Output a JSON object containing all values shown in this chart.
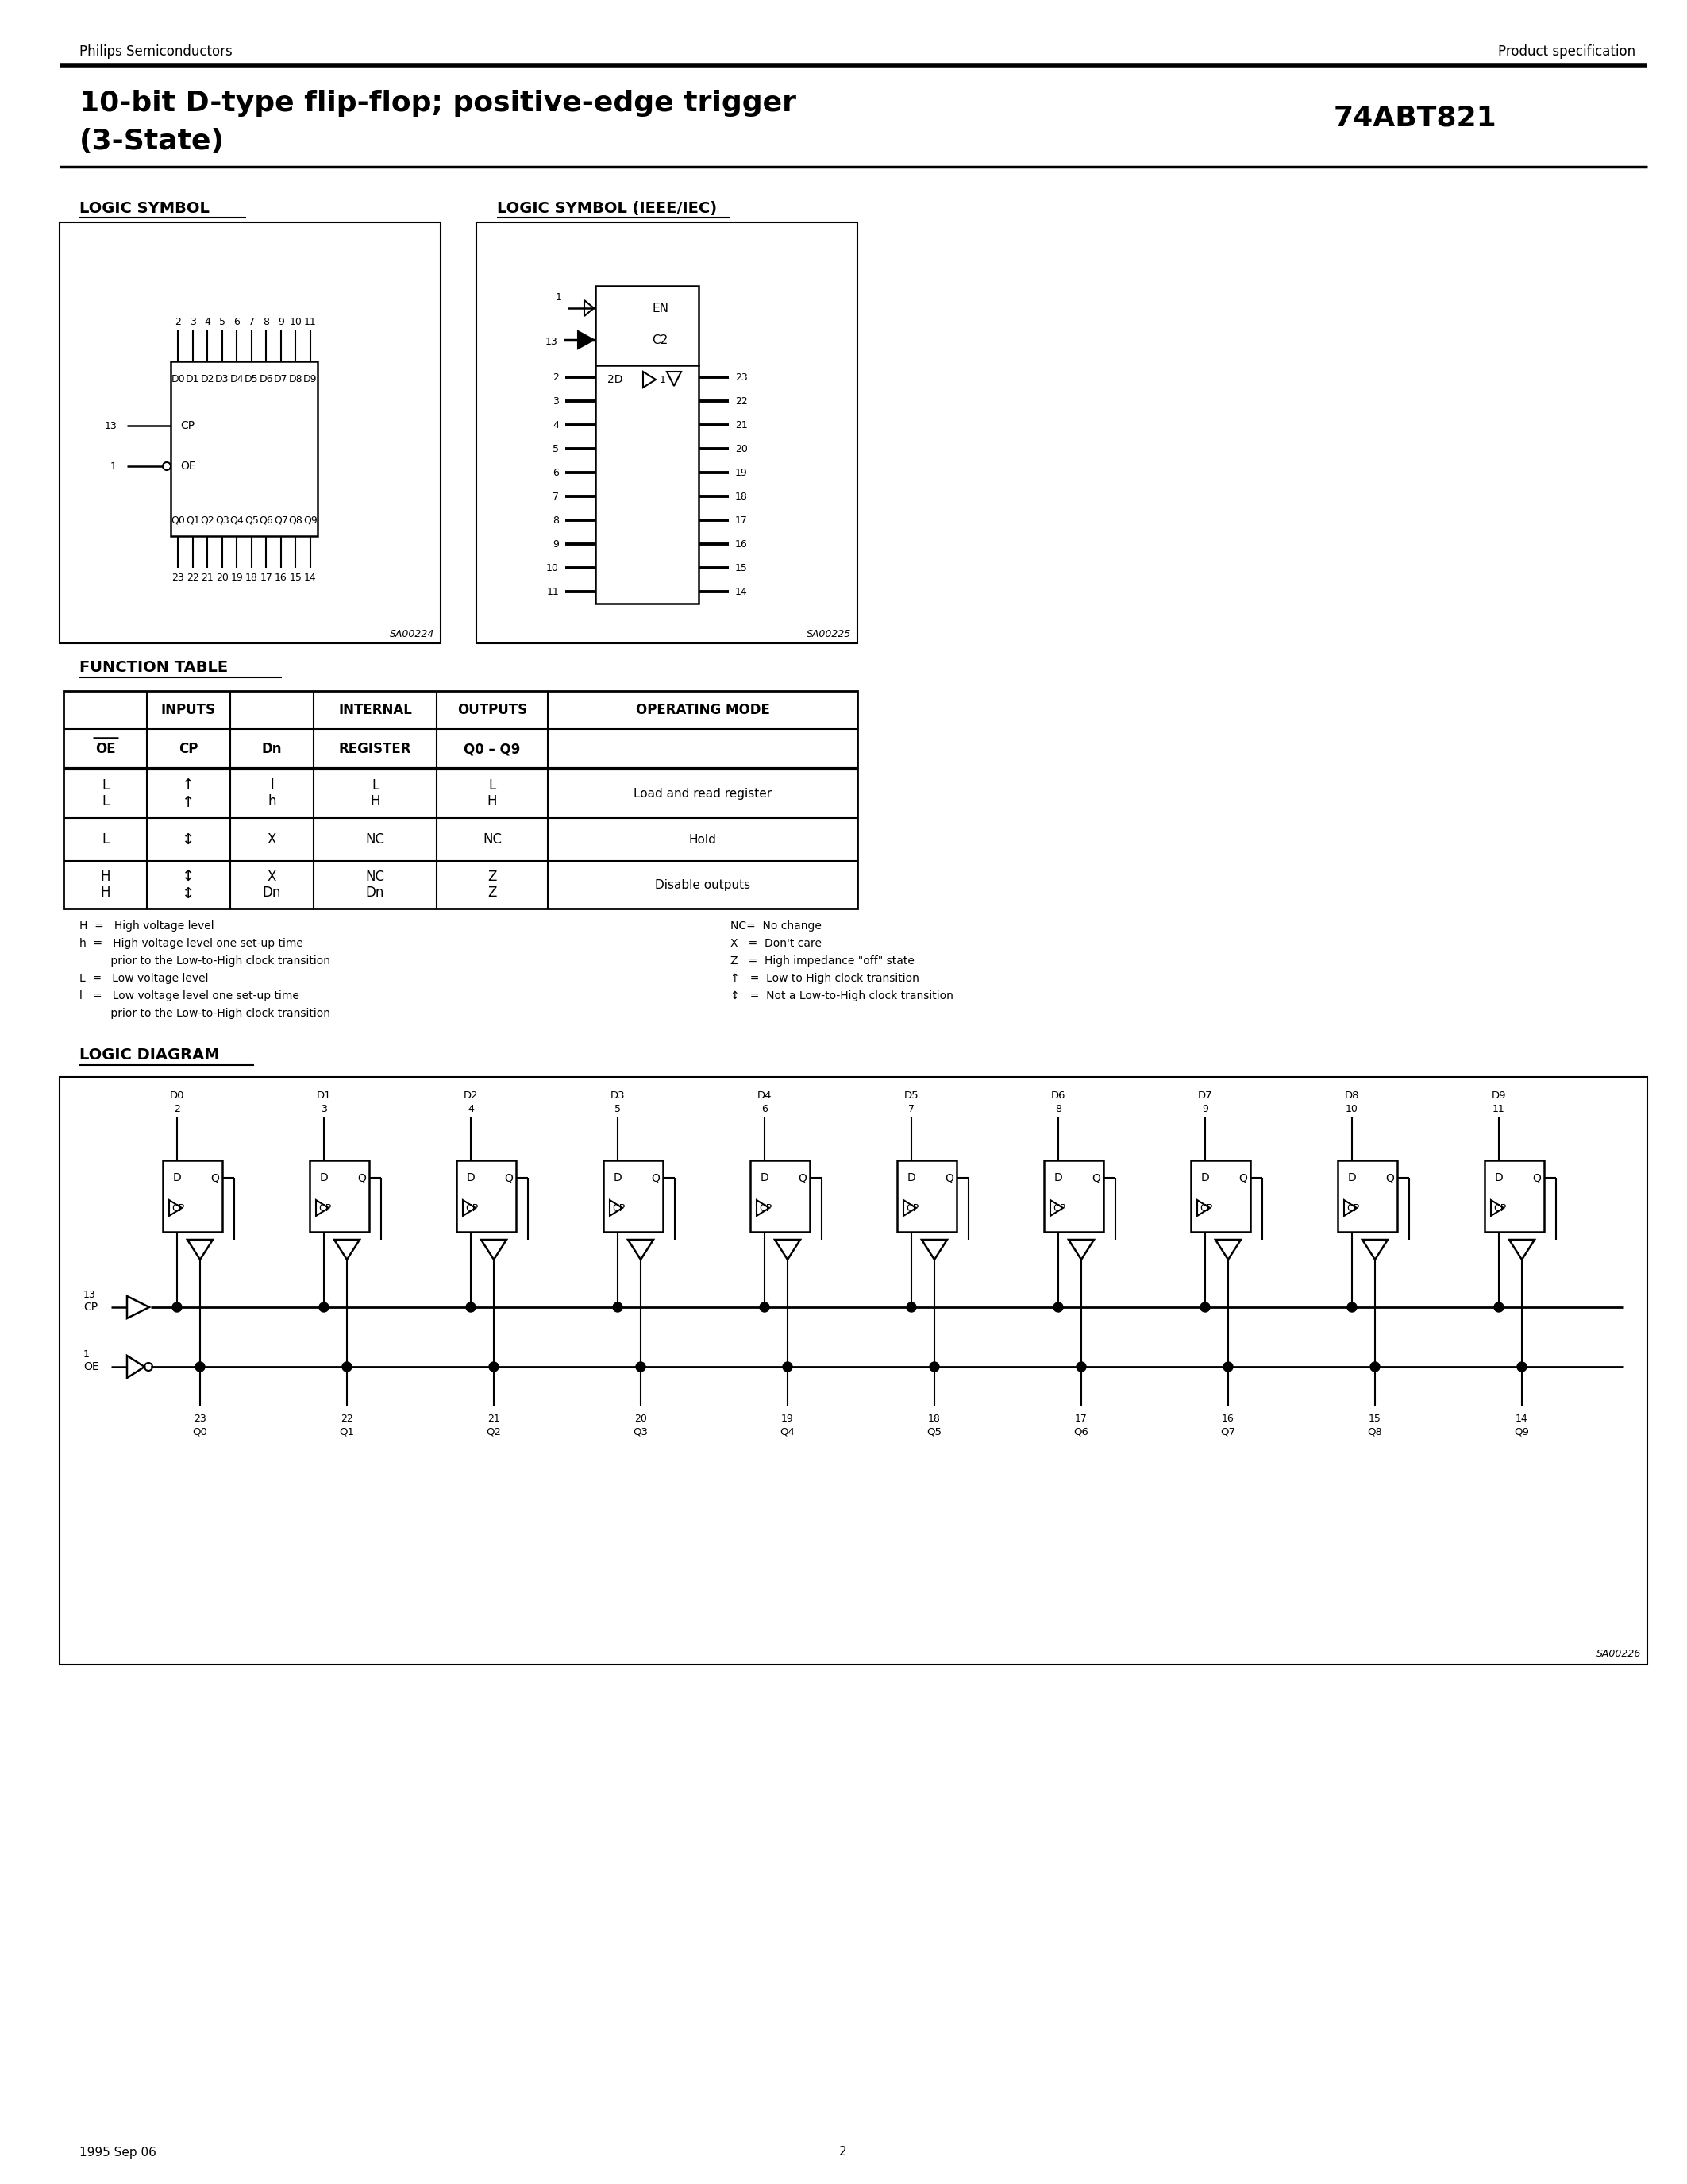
{
  "page_title_line1": "10-bit D-type flip-flop; positive-edge trigger",
  "page_title_line2": "(3-State)",
  "part_number": "74ABT821",
  "company": "Philips Semiconductors",
  "doc_type": "Product specification",
  "page_number": "2",
  "date": "1995 Sep 06",
  "fig_code1": "SA00224",
  "fig_code2": "SA00225",
  "fig_code3": "SA00226",
  "logic_symbol_title": "LOGIC SYMBOL",
  "ieee_symbol_title": "LOGIC SYMBOL (IEEE/IEC)",
  "logic_diagram_title": "LOGIC DIAGRAM",
  "function_table_title": "FUNCTION TABLE"
}
